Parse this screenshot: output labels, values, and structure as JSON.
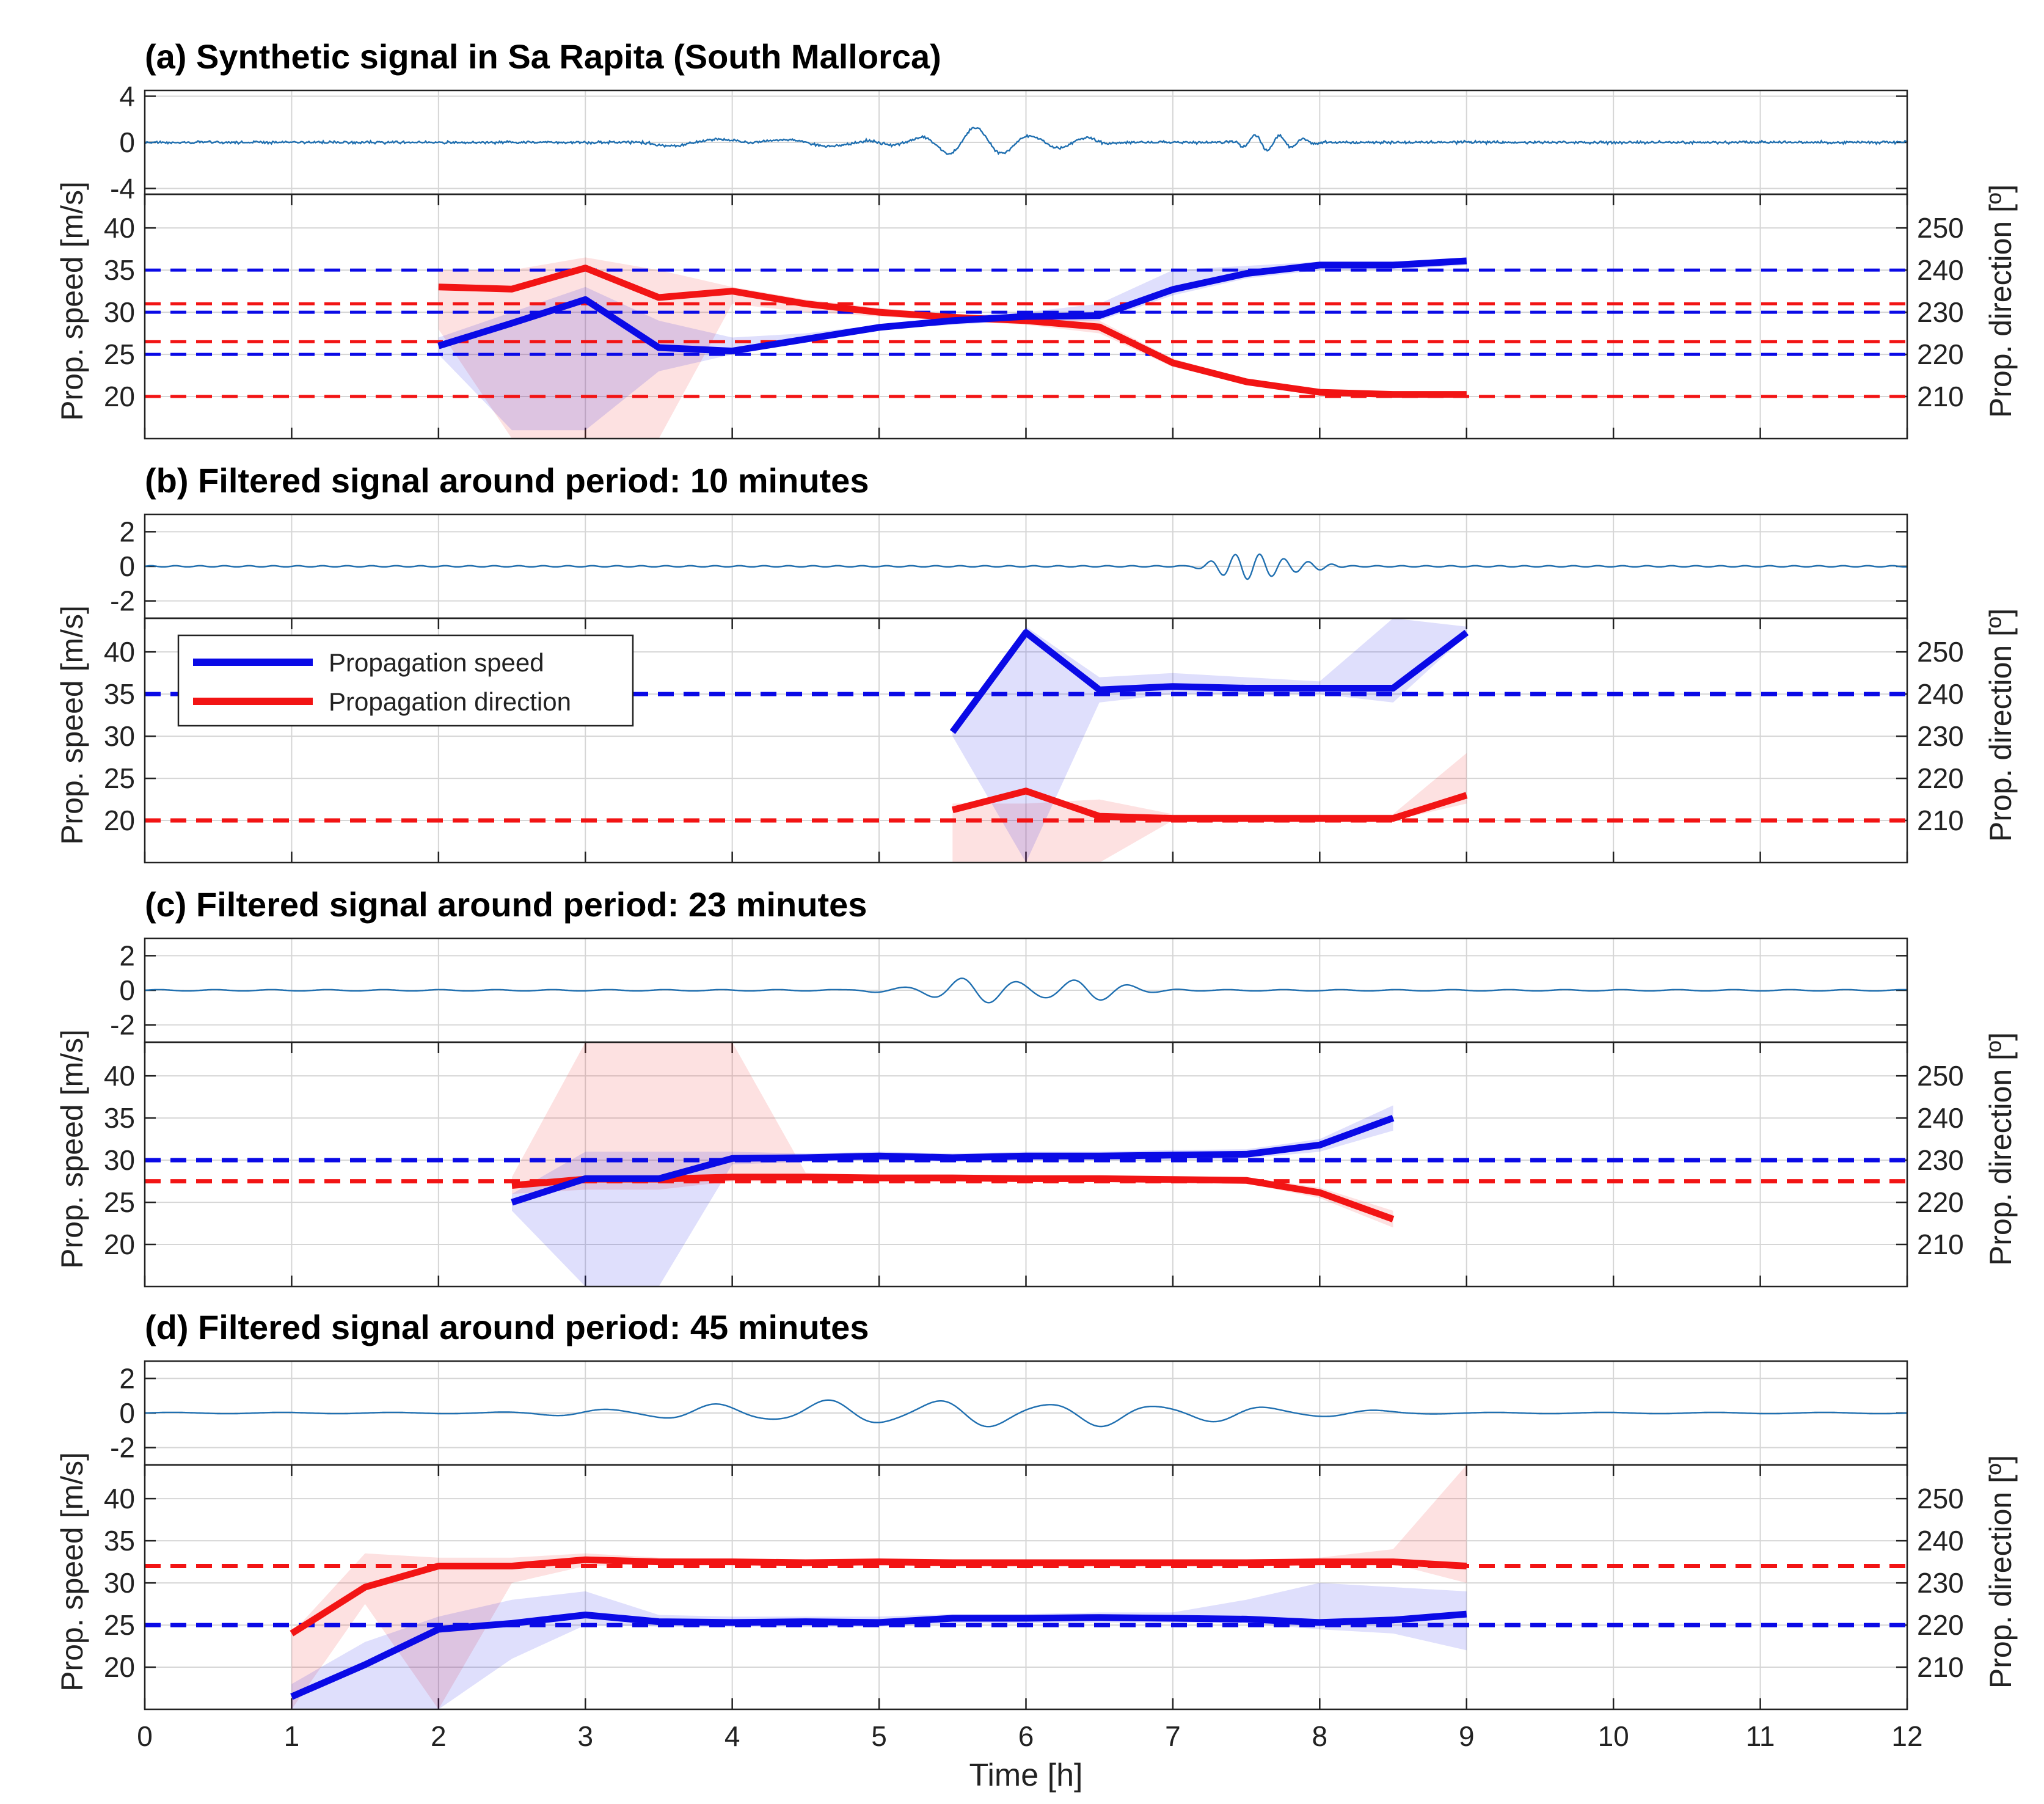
{
  "chart_data": {
    "type": "line",
    "xlabel": "Time [h]",
    "x_ticks": [
      "0",
      "1",
      "2",
      "3",
      "4",
      "5",
      "6",
      "7",
      "8",
      "9",
      "10",
      "11",
      "12"
    ],
    "xlim": [
      0,
      12
    ],
    "colors": {
      "speed": "#0a0ae6",
      "direction": "#f21414",
      "signal": "#1f6fb0"
    },
    "legend": {
      "placement": "upper-left of panel (b) lower axes",
      "entries": [
        "Propagation speed",
        "Propagation direction"
      ]
    },
    "grid": true,
    "panels": [
      {
        "title": "(a) Synthetic signal in Sa Rapita (South Mallorca)",
        "signal": {
          "ylim": [
            -4.5,
            4.5
          ],
          "yticks": [
            "4",
            "0",
            "-4"
          ],
          "ytick_values": [
            4,
            0,
            -4
          ],
          "envelopes": [
            {
              "t0": 4.8,
              "t1": 6.7,
              "amp": 1.3,
              "period_h": 0.38
            },
            {
              "t0": 7.35,
              "t1": 8.05,
              "amp": 1.0,
              "period_h": 0.167
            }
          ]
        },
        "ylabel": "Prop. speed [m/s]",
        "y2label": "Prop. direction [º]",
        "ylim": [
          15,
          44
        ],
        "yticks": [
          "20",
          "25",
          "30",
          "35",
          "40"
        ],
        "ytick_values": [
          20,
          25,
          30,
          35,
          40
        ],
        "y2lim": [
          200,
          258
        ],
        "y2ticks": [
          "210",
          "220",
          "230",
          "240",
          "250"
        ],
        "y2tick_values": [
          210,
          220,
          230,
          240,
          250
        ],
        "ref_speed": [
          35,
          30,
          25
        ],
        "ref_direction": [
          232,
          223,
          210
        ],
        "speed": {
          "x": [
            2,
            2.5,
            3,
            3.5,
            4,
            4.5,
            5,
            5.5,
            6,
            6.5,
            7,
            7.5,
            8,
            8.5,
            9
          ],
          "y": [
            26,
            28.7,
            31.5,
            25.8,
            25.4,
            26.8,
            28.2,
            29,
            29.5,
            29.6,
            32.7,
            34.6,
            35.6,
            35.6,
            36.1
          ],
          "band_lo": [
            25,
            16,
            16,
            23,
            25,
            26.5,
            28,
            28.5,
            29,
            29,
            32,
            34,
            35,
            35,
            35.6
          ],
          "band_hi": [
            27,
            30,
            33,
            29,
            27,
            27.5,
            28.5,
            29.5,
            30,
            31,
            35,
            35.5,
            36,
            36,
            36.5
          ]
        },
        "direction": {
          "x": [
            2,
            2.5,
            3,
            3.5,
            4,
            4.5,
            5,
            5.5,
            6,
            6.5,
            7,
            7.5,
            8,
            8.5,
            9
          ],
          "y": [
            236,
            235.5,
            240.5,
            233.5,
            235,
            232,
            230,
            228.8,
            228,
            226.5,
            218,
            213.5,
            211,
            210.5,
            210.5
          ],
          "band_lo": [
            226,
            200,
            200,
            200,
            232,
            230,
            229,
            228,
            227,
            225,
            217,
            213,
            210.5,
            210,
            210
          ],
          "band_hi": [
            240,
            240,
            243,
            240,
            236,
            233,
            231,
            229.5,
            229,
            228,
            219,
            214,
            211.5,
            211,
            211
          ]
        }
      },
      {
        "title": "(b) Filtered signal around period: 10 minutes",
        "signal": {
          "ylim": [
            -3,
            3
          ],
          "yticks": [
            "2",
            "0",
            "-2"
          ],
          "ytick_values": [
            2,
            0,
            -2
          ],
          "envelopes": [
            {
              "t0": 7.05,
              "t1": 8.2,
              "amp": 0.85,
              "period_h": 0.167
            }
          ]
        },
        "ylabel": "Prop. speed [m/s]",
        "y2label": "Prop. direction [º]",
        "ylim": [
          15,
          44
        ],
        "yticks": [
          "20",
          "25",
          "30",
          "35",
          "40"
        ],
        "ytick_values": [
          20,
          25,
          30,
          35,
          40
        ],
        "y2lim": [
          200,
          258
        ],
        "y2ticks": [
          "210",
          "220",
          "230",
          "240",
          "250"
        ],
        "y2tick_values": [
          210,
          220,
          230,
          240,
          250
        ],
        "ref_speed": [
          35
        ],
        "ref_direction": [
          210
        ],
        "speed": {
          "x": [
            5.5,
            6,
            6.5,
            7,
            7.5,
            8,
            8.5,
            9
          ],
          "y": [
            30.5,
            42.3,
            35.5,
            35.9,
            35.7,
            35.7,
            35.7,
            42.3
          ],
          "band_lo": [
            30,
            15,
            34,
            35,
            35,
            35,
            34,
            42
          ],
          "band_hi": [
            31,
            43,
            37,
            37.5,
            37,
            36.5,
            44,
            43
          ]
        },
        "direction": {
          "x": [
            5.5,
            6,
            6.5,
            7,
            7.5,
            8,
            8.5,
            9
          ],
          "y": [
            212.5,
            217,
            211,
            210.5,
            210.5,
            210.5,
            210.5,
            216
          ],
          "band_lo": [
            200,
            200,
            200,
            210,
            210,
            210,
            210,
            214
          ],
          "band_hi": [
            214,
            214,
            215,
            211.5,
            211.5,
            211.5,
            211.5,
            226
          ]
        }
      },
      {
        "title": "(c) Filtered signal around period: 23 minutes",
        "signal": {
          "ylim": [
            -3,
            3
          ],
          "yticks": [
            "2",
            "0",
            "-2"
          ],
          "ytick_values": [
            2,
            0,
            -2
          ],
          "envelopes": [
            {
              "t0": 4.7,
              "t1": 7.2,
              "amp": 0.85,
              "period_h": 0.383
            }
          ]
        },
        "ylabel": "Prop. speed [m/s]",
        "y2label": "Prop. direction [º]",
        "ylim": [
          15,
          44
        ],
        "yticks": [
          "20",
          "25",
          "30",
          "35",
          "40"
        ],
        "ytick_values": [
          20,
          25,
          30,
          35,
          40
        ],
        "y2lim": [
          200,
          258
        ],
        "y2ticks": [
          "210",
          "220",
          "230",
          "240",
          "250"
        ],
        "y2tick_values": [
          210,
          220,
          230,
          240,
          250
        ],
        "ref_speed": [
          30
        ],
        "ref_direction": [
          225
        ],
        "speed": {
          "x": [
            2.5,
            3,
            3.5,
            4,
            4.5,
            5,
            5.5,
            6,
            6.5,
            7,
            7.5,
            8,
            8.5
          ],
          "y": [
            25,
            27.8,
            27.8,
            30.2,
            30.3,
            30.5,
            30.3,
            30.5,
            30.5,
            30.6,
            30.7,
            31.8,
            35
          ],
          "band_lo": [
            24,
            15,
            15,
            29.5,
            29.8,
            30,
            29.8,
            30,
            30,
            30,
            30.2,
            31,
            33.5
          ],
          "band_hi": [
            26,
            31,
            31,
            31,
            30.8,
            31,
            30.8,
            31,
            31,
            31.2,
            31.3,
            32.5,
            36.5
          ]
        },
        "direction": {
          "x": [
            2.5,
            3,
            3.5,
            4,
            4.5,
            5,
            5.5,
            6,
            6.5,
            7,
            7.5,
            8,
            8.5
          ],
          "y": [
            224,
            225.5,
            225.5,
            226,
            226,
            225.8,
            225.8,
            225.6,
            225.6,
            225.4,
            225.2,
            222.3,
            216
          ],
          "band_lo": [
            222,
            223,
            223,
            225,
            225,
            225,
            225,
            225,
            225,
            224.8,
            224.5,
            221,
            214
          ],
          "band_hi": [
            226,
            258,
            258,
            258,
            227,
            226.5,
            226.5,
            226.3,
            226.3,
            226,
            226,
            223.5,
            218
          ]
        }
      },
      {
        "title": "(d) Filtered signal around period: 45 minutes",
        "signal": {
          "ylim": [
            -3,
            3
          ],
          "yticks": [
            "2",
            "0",
            "-2"
          ],
          "ytick_values": [
            2,
            0,
            -2
          ],
          "envelopes": [
            {
              "t0": 2.2,
              "t1": 9.0,
              "amp": 0.85,
              "period_h": 0.75
            }
          ]
        },
        "ylabel": "Prop. speed [m/s]",
        "y2label": "Prop. direction [º]",
        "ylim": [
          15,
          44
        ],
        "yticks": [
          "20",
          "25",
          "30",
          "35",
          "40"
        ],
        "ytick_values": [
          20,
          25,
          30,
          35,
          40
        ],
        "y2lim": [
          200,
          258
        ],
        "y2ticks": [
          "210",
          "220",
          "230",
          "240",
          "250"
        ],
        "y2tick_values": [
          210,
          220,
          230,
          240,
          250
        ],
        "ref_speed": [
          25
        ],
        "ref_direction": [
          234
        ],
        "speed": {
          "x": [
            1,
            1.5,
            2,
            2.5,
            3,
            3.5,
            4,
            4.5,
            5,
            5.5,
            6,
            6.5,
            7,
            7.5,
            8,
            8.5,
            9
          ],
          "y": [
            16.5,
            20.3,
            24.5,
            25.2,
            26.2,
            25.4,
            25.3,
            25.4,
            25.3,
            25.8,
            25.8,
            25.9,
            25.8,
            25.7,
            25.3,
            25.6,
            26.3
          ],
          "band_lo": [
            15,
            15,
            15,
            21,
            25,
            24.8,
            24.8,
            24.8,
            24.8,
            25.2,
            25.2,
            25.3,
            25.3,
            25.2,
            24.5,
            24,
            22
          ],
          "band_hi": [
            18,
            23,
            26,
            28,
            29,
            26.2,
            26,
            26,
            26,
            26.3,
            26.3,
            26.5,
            26.5,
            28,
            30,
            29.5,
            29
          ]
        },
        "direction": {
          "x": [
            1,
            1.5,
            2,
            2.5,
            3,
            3.5,
            4,
            4.5,
            5,
            5.5,
            6,
            6.5,
            7,
            7.5,
            8,
            8.5,
            9
          ],
          "y": [
            218,
            229,
            234,
            234,
            235.5,
            235,
            235,
            234.8,
            235,
            234.8,
            234.8,
            234.8,
            234.8,
            234.8,
            235,
            235,
            234
          ],
          "band_lo": [
            200,
            225,
            200,
            230,
            234,
            234.5,
            234.5,
            234.3,
            234.5,
            234.3,
            234.3,
            234.3,
            234.3,
            234.3,
            234.5,
            234.5,
            230
          ],
          "band_hi": [
            218,
            237,
            236,
            236,
            237,
            236,
            235.5,
            235.3,
            235.5,
            235.3,
            235.3,
            235.3,
            235.3,
            235.3,
            236,
            238,
            258
          ]
        }
      }
    ]
  }
}
